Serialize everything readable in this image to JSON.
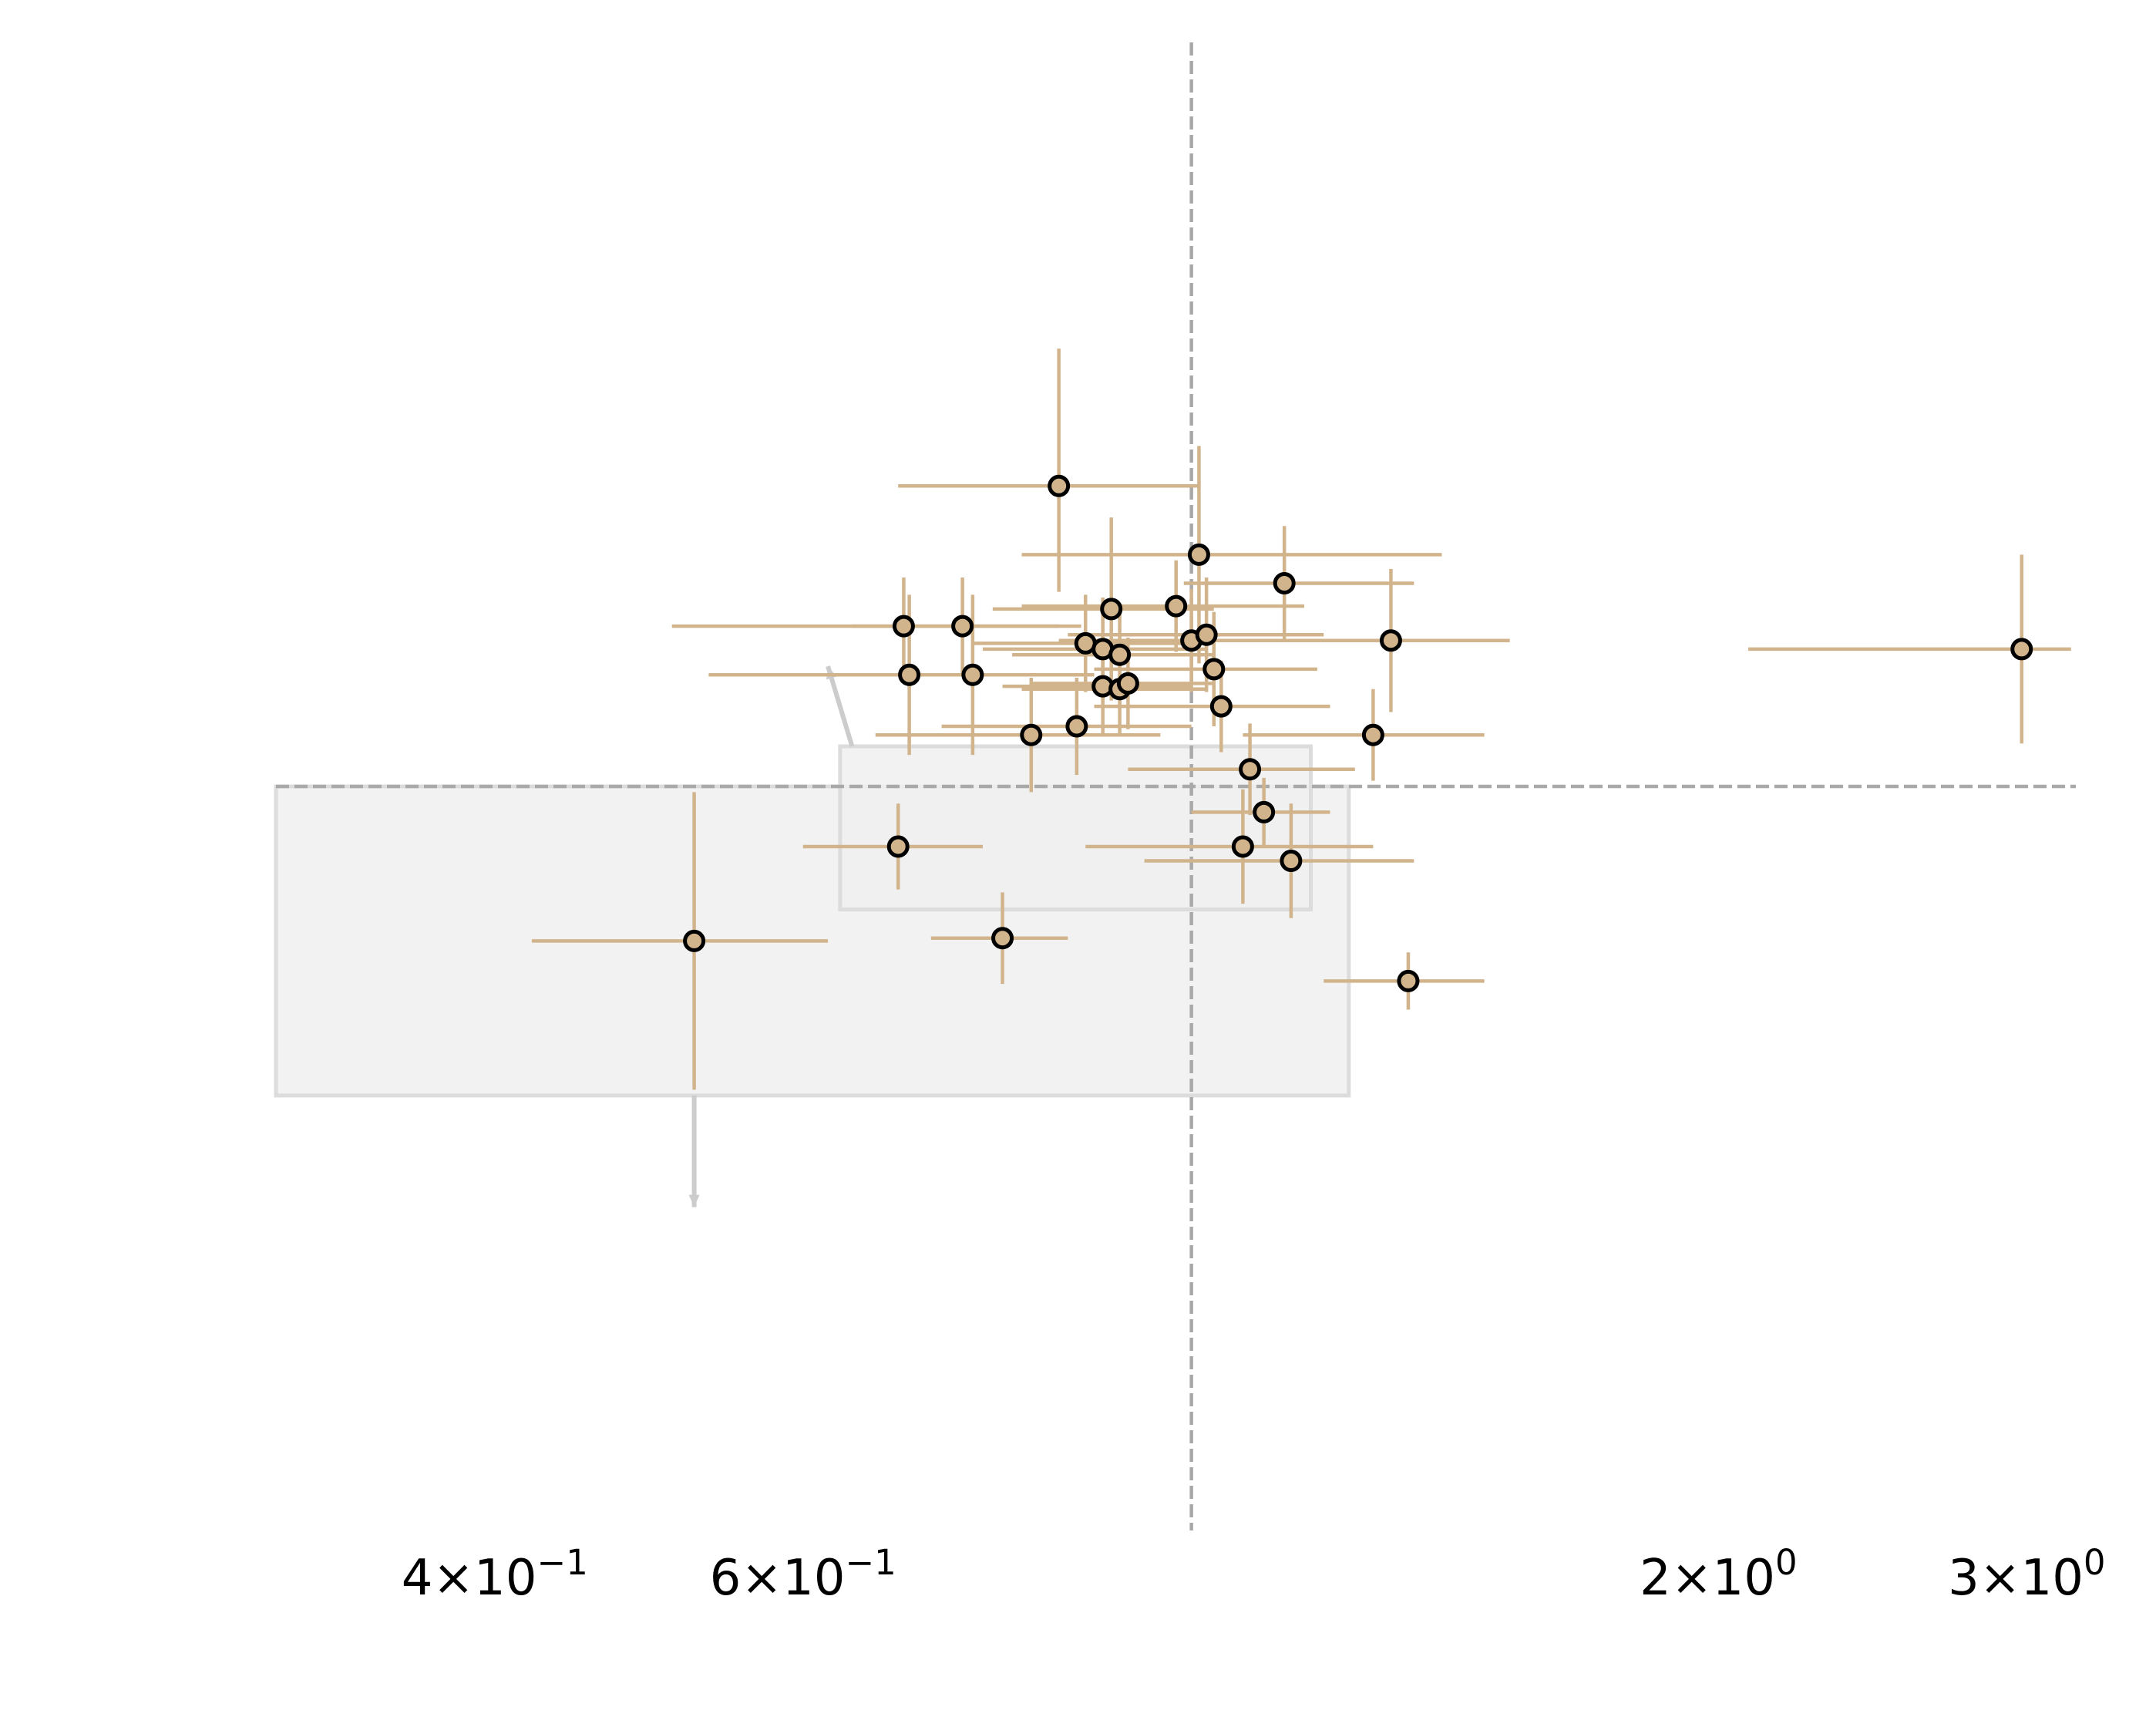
{
  "chart_data": {
    "type": "scatter",
    "title": "",
    "xlabel": "",
    "ylabel": "",
    "x_scale": "log",
    "xlim": [
      0.3,
      3.2
    ],
    "ylim": [
      -2.6,
      2.6
    ],
    "grid": false,
    "x_ticks": [
      {
        "value": 0.4,
        "mantissa": "4",
        "exponent": "−1"
      },
      {
        "value": 0.6,
        "mantissa": "6",
        "exponent": "−1"
      },
      {
        "value": 2.0,
        "mantissa": "2",
        "exponent": "0"
      },
      {
        "value": 3.0,
        "mantissa": "3",
        "exponent": "0"
      }
    ],
    "reference_lines": {
      "x": 1.0,
      "y": 0.0
    },
    "colors": {
      "marker_fill": "#d2b48c",
      "marker_edge": "#000000",
      "error_bar": "#d2b48c",
      "reference_line": "#a9a9a9",
      "region_fill": "#f0f0f0",
      "region_edge": "#dcdcdc",
      "arrow": "#cccccc"
    },
    "regions": [
      {
        "x": [
          0.3,
          1.23
        ],
        "y": [
          -1.08,
          0.0
        ]
      },
      {
        "x": [
          0.63,
          1.17
        ],
        "y": [
          -0.43,
          0.14
        ]
      }
    ],
    "arrows": [
      {
        "from": [
          0.64,
          0.14
        ],
        "to": [
          0.62,
          0.42
        ]
      },
      {
        "from": [
          0.52,
          -1.08
        ],
        "to": [
          0.52,
          -1.47
        ]
      }
    ],
    "points": [
      {
        "x": 0.84,
        "y": 1.05,
        "xerr": [
          0.16,
          0.17
        ],
        "yerr": [
          0.37,
          0.48
        ]
      },
      {
        "x": 1.01,
        "y": 0.81,
        "xerr": [
          0.21,
          0.38
        ],
        "yerr": [
          0.38,
          0.38
        ]
      },
      {
        "x": 1.13,
        "y": 0.71,
        "xerr": [
          0.14,
          0.21
        ],
        "yerr": [
          0.2,
          0.2
        ]
      },
      {
        "x": 0.9,
        "y": 0.62,
        "xerr": [
          0.13,
          0.13
        ],
        "yerr": [
          0.32,
          0.32
        ]
      },
      {
        "x": 0.98,
        "y": 0.63,
        "xerr": [
          0.18,
          0.18
        ],
        "yerr": [
          0.16,
          0.16
        ]
      },
      {
        "x": 0.74,
        "y": 0.56,
        "xerr": [
          0.1,
          0.1
        ],
        "yerr": [
          0.17,
          0.17
        ]
      },
      {
        "x": 0.87,
        "y": 0.5,
        "xerr": [
          0.12,
          0.12
        ],
        "yerr": [
          0.17,
          0.17
        ]
      },
      {
        "x": 0.89,
        "y": 0.48,
        "xerr": [
          0.13,
          0.13
        ],
        "yerr": [
          0.18,
          0.18
        ]
      },
      {
        "x": 0.91,
        "y": 0.46,
        "xerr": [
          0.12,
          0.12
        ],
        "yerr": [
          0.18,
          0.18
        ]
      },
      {
        "x": 1.0,
        "y": 0.51,
        "xerr": [
          0.16,
          0.16
        ],
        "yerr": [
          0.18,
          0.18
        ]
      },
      {
        "x": 1.02,
        "y": 0.53,
        "xerr": [
          0.17,
          0.17
        ],
        "yerr": [
          0.2,
          0.2
        ]
      },
      {
        "x": 1.03,
        "y": 0.41,
        "xerr": [
          0.15,
          0.15
        ],
        "yerr": [
          0.2,
          0.2
        ]
      },
      {
        "x": 1.3,
        "y": 0.51,
        "xerr": [
          0.22,
          0.22
        ],
        "yerr": [
          0.25,
          0.25
        ]
      },
      {
        "x": 0.75,
        "y": 0.39,
        "xerr": [
          0.13,
          0.13
        ],
        "yerr": [
          0.28,
          0.28
        ]
      },
      {
        "x": 0.89,
        "y": 0.35,
        "xerr": [
          0.11,
          0.11
        ],
        "yerr": [
          0.17,
          0.17
        ]
      },
      {
        "x": 0.91,
        "y": 0.34,
        "xerr": [
          0.11,
          0.11
        ],
        "yerr": [
          0.16,
          0.16
        ]
      },
      {
        "x": 0.92,
        "y": 0.36,
        "xerr": [
          0.11,
          0.11
        ],
        "yerr": [
          0.16,
          0.16
        ]
      },
      {
        "x": 1.04,
        "y": 0.28,
        "xerr": [
          0.16,
          0.16
        ],
        "yerr": [
          0.16,
          0.16
        ]
      },
      {
        "x": 0.81,
        "y": 0.18,
        "xerr": [
          0.15,
          0.15
        ],
        "yerr": [
          0.2,
          0.2
        ]
      },
      {
        "x": 0.86,
        "y": 0.21,
        "xerr": [
          0.14,
          0.14
        ],
        "yerr": [
          0.17,
          0.17
        ]
      },
      {
        "x": 1.27,
        "y": 0.18,
        "xerr": [
          0.2,
          0.2
        ],
        "yerr": [
          0.16,
          0.16
        ]
      },
      {
        "x": 1.08,
        "y": 0.06,
        "xerr": [
          0.16,
          0.16
        ],
        "yerr": [
          0.16,
          0.16
        ]
      },
      {
        "x": 1.1,
        "y": -0.09,
        "xerr": [
          0.1,
          0.1
        ],
        "yerr": [
          0.12,
          0.12
        ]
      },
      {
        "x": 1.07,
        "y": -0.21,
        "xerr": [
          0.2,
          0.2
        ],
        "yerr": [
          0.2,
          0.2
        ]
      },
      {
        "x": 1.14,
        "y": -0.26,
        "xerr": [
          0.2,
          0.2
        ],
        "yerr": [
          0.2,
          0.2
        ]
      },
      {
        "x": 0.68,
        "y": -0.21,
        "xerr": [
          0.08,
          0.08
        ],
        "yerr": [
          0.15,
          0.15
        ]
      },
      {
        "x": 0.78,
        "y": -0.53,
        "xerr": [
          0.07,
          0.07
        ],
        "yerr": [
          0.16,
          0.16
        ]
      },
      {
        "x": 0.52,
        "y": -0.54,
        "xerr": [
          0.1,
          0.1
        ],
        "yerr": [
          0.52,
          0.52
        ]
      },
      {
        "x": 1.33,
        "y": -0.68,
        "xerr": [
          0.14,
          0.14
        ],
        "yerr": [
          0.1,
          0.1
        ]
      },
      {
        "x": 2.98,
        "y": 0.48,
        "xerr": [
          0.9,
          0.2
        ],
        "yerr": [
          0.33,
          0.33
        ]
      },
      {
        "x": 0.685,
        "y": 0.56,
        "xerr": [
          0.18,
          0.18
        ],
        "yerr": [
          0.17,
          0.17
        ]
      },
      {
        "x": 0.69,
        "y": 0.39,
        "xerr": [
          0.16,
          0.16
        ],
        "yerr": [
          0.28,
          0.28
        ]
      }
    ]
  }
}
